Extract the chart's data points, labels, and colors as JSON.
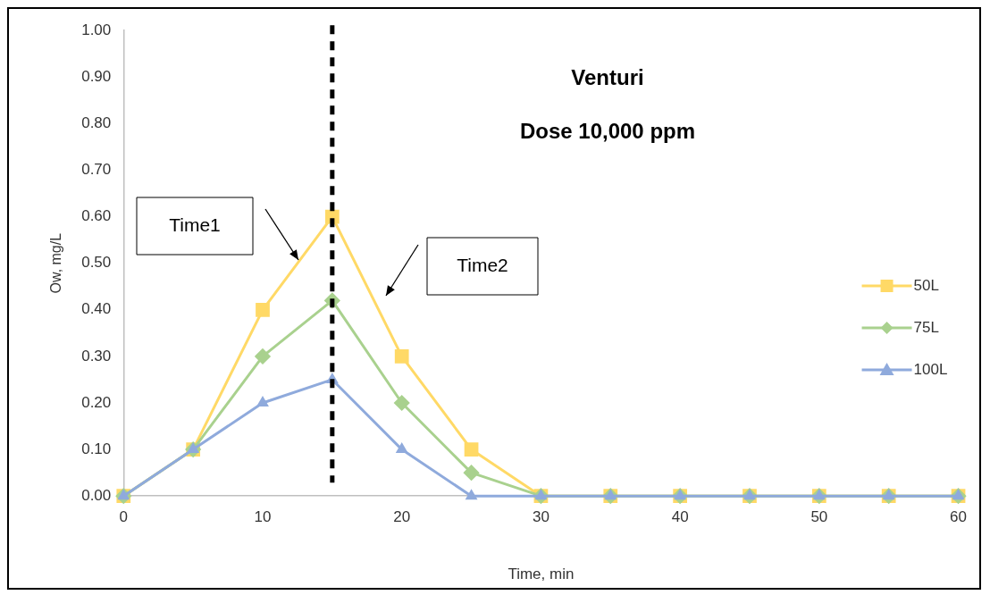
{
  "chart_data": {
    "type": "line",
    "title": "Venturi",
    "subtitle": "Dose 10,000 ppm",
    "xlabel": "Time, min",
    "ylabel": "Ow, mg/L",
    "x": [
      0,
      5,
      10,
      15,
      20,
      25,
      30,
      35,
      40,
      45,
      50,
      55,
      60
    ],
    "series": [
      {
        "name": "50L",
        "color": "#ffd966",
        "marker": "square",
        "values": [
          0,
          0.1,
          0.4,
          0.6,
          0.3,
          0.1,
          0,
          0,
          0,
          0,
          0,
          0,
          0
        ]
      },
      {
        "name": "75L",
        "color": "#a9d18e",
        "marker": "diamond",
        "values": [
          0,
          0.1,
          0.3,
          0.42,
          0.2,
          0.05,
          0,
          0,
          0,
          0,
          0,
          0,
          0
        ]
      },
      {
        "name": "100L",
        "color": "#8faadc",
        "marker": "triangle",
        "values": [
          0,
          0.1,
          0.2,
          0.25,
          0.1,
          0,
          0,
          0,
          0,
          0,
          0,
          0,
          0
        ]
      }
    ],
    "xlim": [
      0,
      60
    ],
    "xticks": [
      0,
      10,
      20,
      30,
      40,
      50,
      60
    ],
    "ylim": [
      0,
      1
    ],
    "yticks": [
      {
        "value": 0,
        "label": "0.00"
      },
      {
        "value": 0.1,
        "label": "0.10"
      },
      {
        "value": 0.2,
        "label": "0.20"
      },
      {
        "value": 0.3,
        "label": "0.30"
      },
      {
        "value": 0.4,
        "label": "0.40"
      },
      {
        "value": 0.5,
        "label": "0.50"
      },
      {
        "value": 0.6,
        "label": "0.60"
      },
      {
        "value": 0.7,
        "label": "0.70"
      },
      {
        "value": 0.8,
        "label": "0.80"
      },
      {
        "value": 0.9,
        "label": "0.90"
      },
      {
        "value": 1,
        "label": "1.00"
      }
    ],
    "ref_lines": [
      {
        "axis": "x",
        "value": 15,
        "color": "#000000",
        "line_style": "dashed"
      }
    ],
    "annotations": [
      "Time1",
      "Time2"
    ],
    "grid": false,
    "legend": "right",
    "line_style": "solid"
  }
}
